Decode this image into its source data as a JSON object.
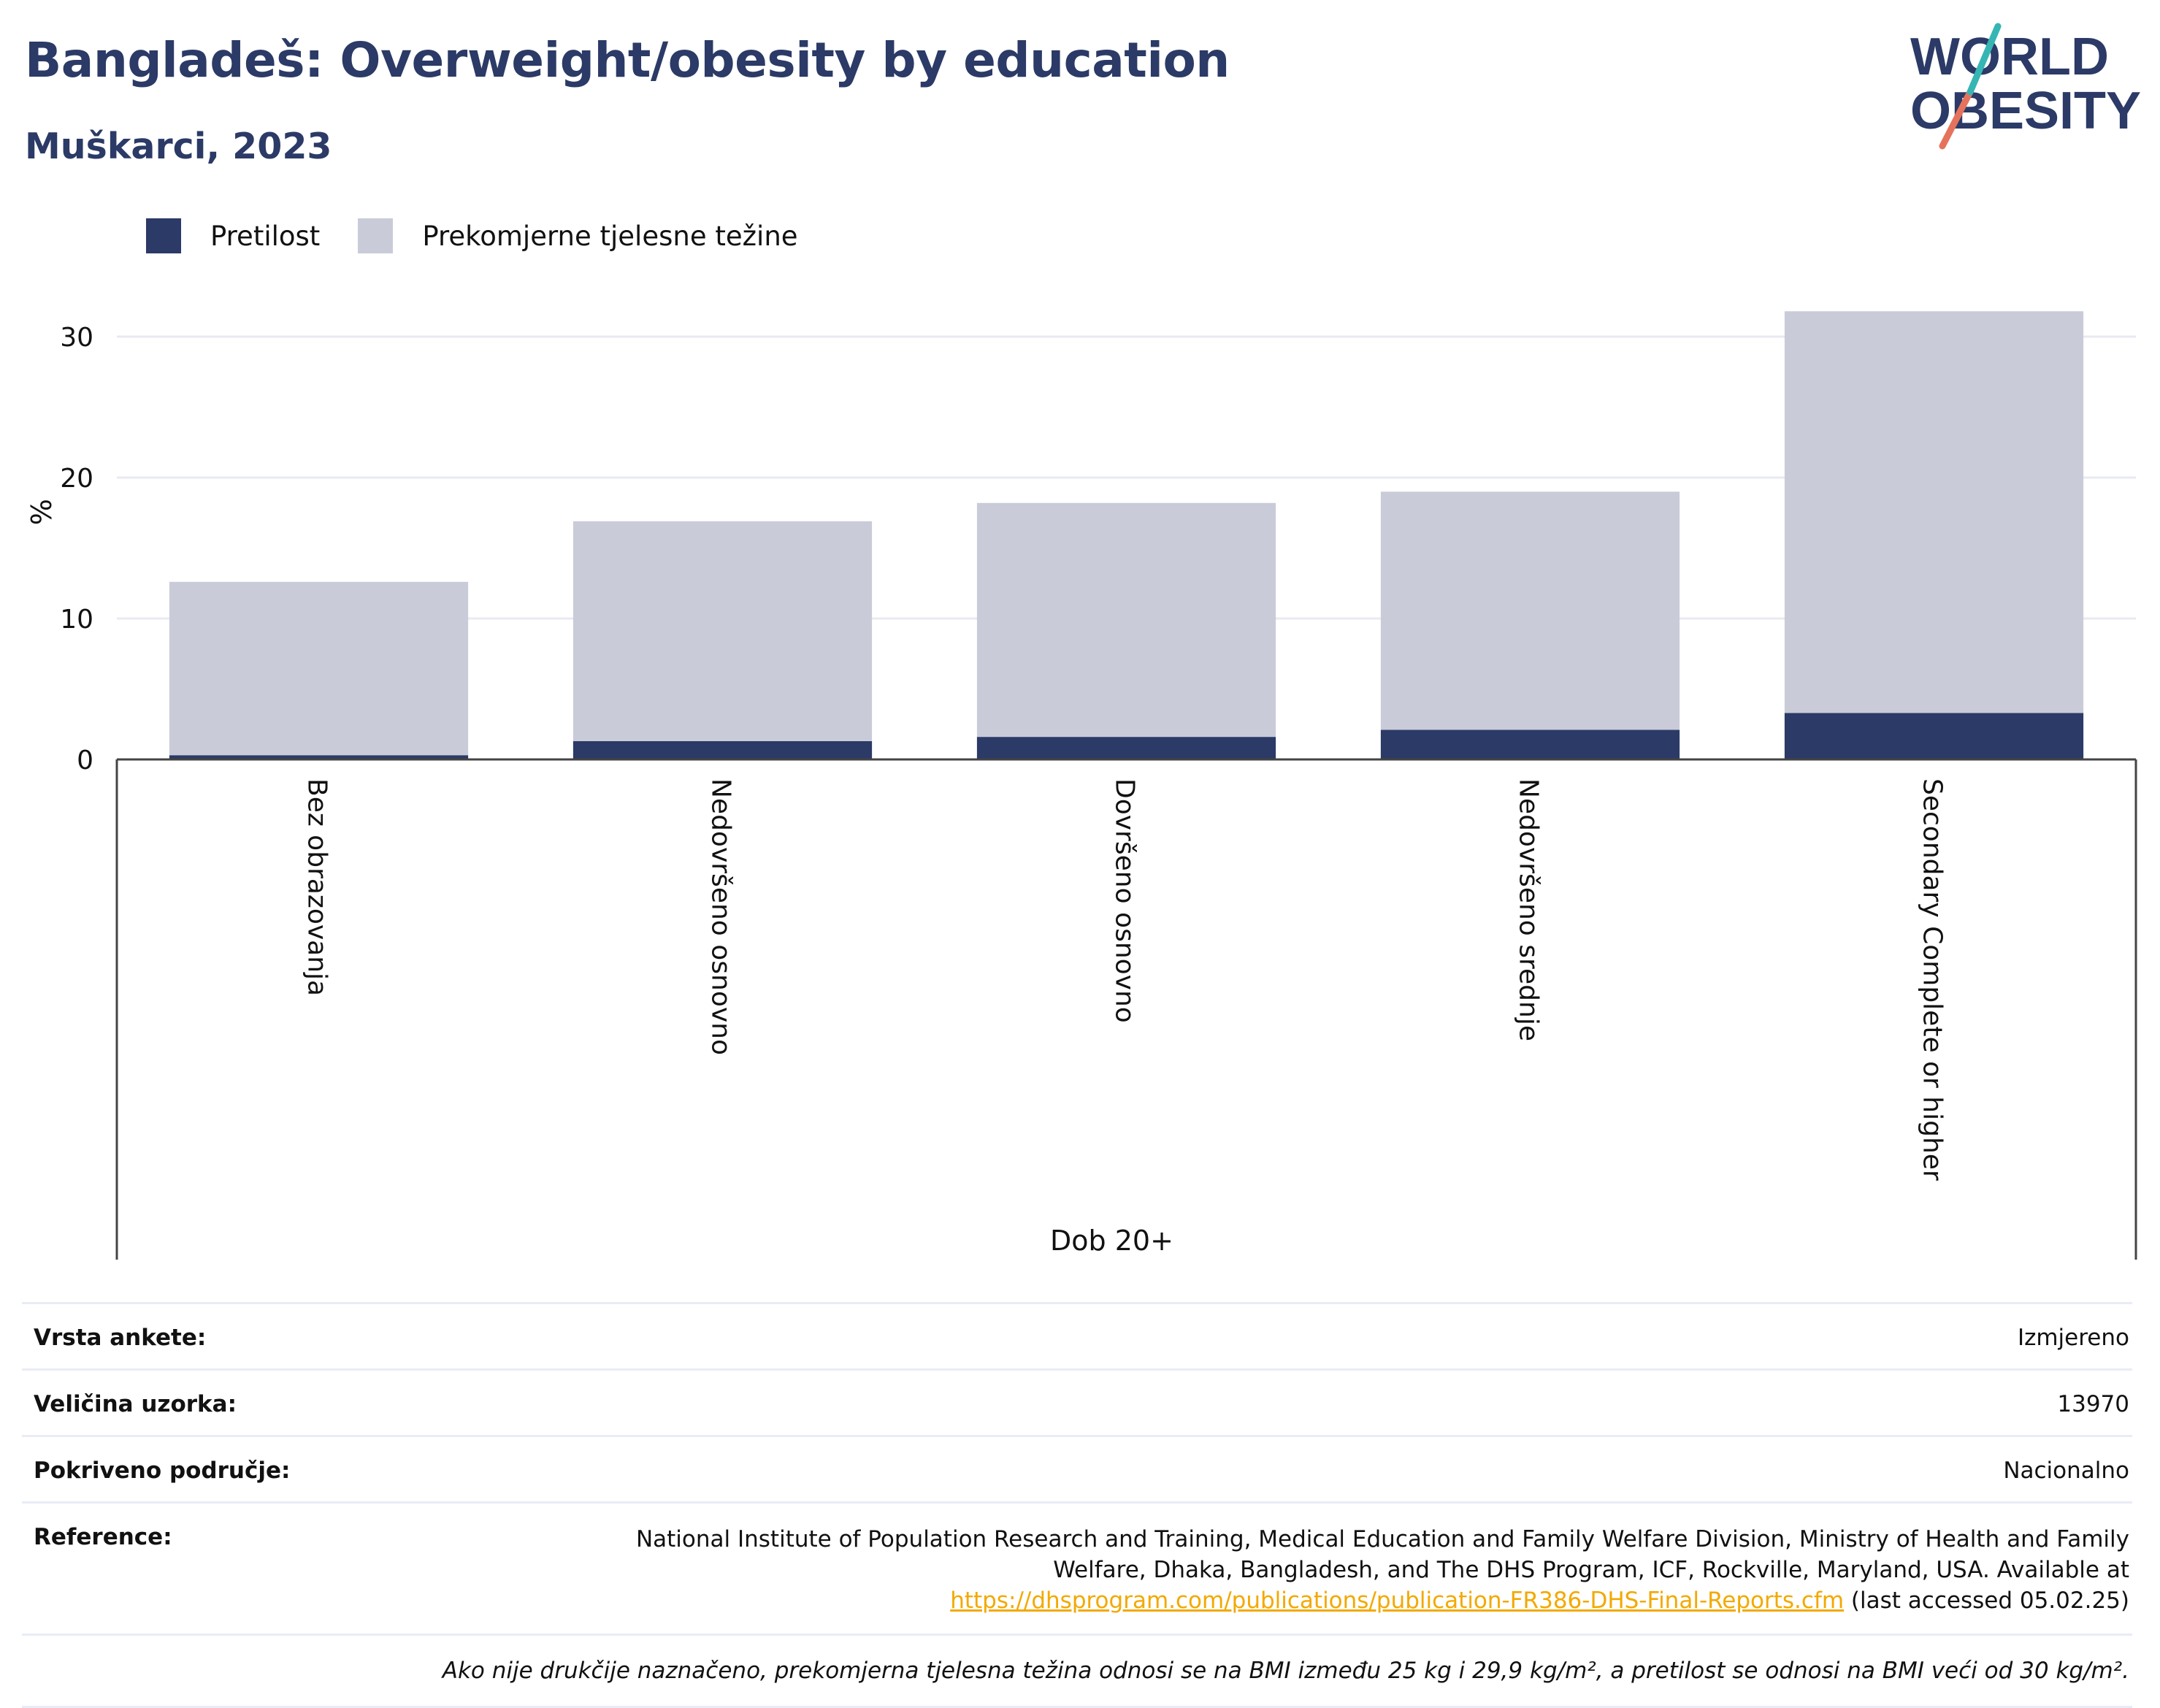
{
  "header": {
    "title": "Bangladeš: Overweight/obesity by education",
    "subtitle": "Muškarci, 2023"
  },
  "logo": {
    "line1": "WORLD",
    "line2": "OBESITY",
    "colors": [
      "#2b3a66",
      "#35b6b4",
      "#e5735c"
    ]
  },
  "legend": [
    {
      "label": "Pretilost",
      "color": "#2b3a66"
    },
    {
      "label": "Prekomjerne tjelesne težine",
      "color": "#c9ccd8"
    }
  ],
  "chart_data": {
    "type": "bar",
    "stacked": true,
    "categories": [
      "Bez obrazovanja",
      "Nedovršeno osnovno",
      "Dovršeno osnovno",
      "Nedovršeno srednje",
      "Secondary Complete or higher"
    ],
    "series": [
      {
        "name": "Pretilost",
        "color": "#2b3a66",
        "values": [
          0.3,
          1.3,
          1.6,
          2.1,
          3.3
        ]
      },
      {
        "name": "Prekomjerne tjelesne težine",
        "color": "#c9ccd8",
        "values": [
          12.3,
          15.6,
          16.6,
          16.9,
          28.5
        ]
      }
    ],
    "ylabel": "%",
    "xlabel": "Dob 20+",
    "yticks": [
      0,
      10,
      20,
      30
    ],
    "ylim": [
      0,
      33
    ],
    "grid": true
  },
  "info": {
    "survey_type_label": "Vrsta ankete:",
    "survey_type_value": "Izmjereno",
    "sample_size_label": "Veličina uzorka:",
    "sample_size_value": "13970",
    "coverage_label": "Pokriveno područje:",
    "coverage_value": "Nacionalno",
    "reference_label": "Reference:",
    "reference_text": "National Institute of Population Research and Training, Medical Education and Family Welfare Division, Ministry of Health and Family Welfare, Dhaka, Bangladesh, and The DHS Program, ICF, Rockville, Maryland, USA. Available at",
    "reference_link": "https://dhsprogram.com/publications/publication-FR386-DHS-Final-Reports.cfm",
    "reference_suffix": "(last accessed 05.02.25)",
    "note": "Ako nije drukčije naznačeno, prekomjerna tjelesna težina odnosi se na BMI između 25 kg i 29,9 kg/m², a pretilost se odnosi na BMI veći od 30 kg/m²."
  }
}
